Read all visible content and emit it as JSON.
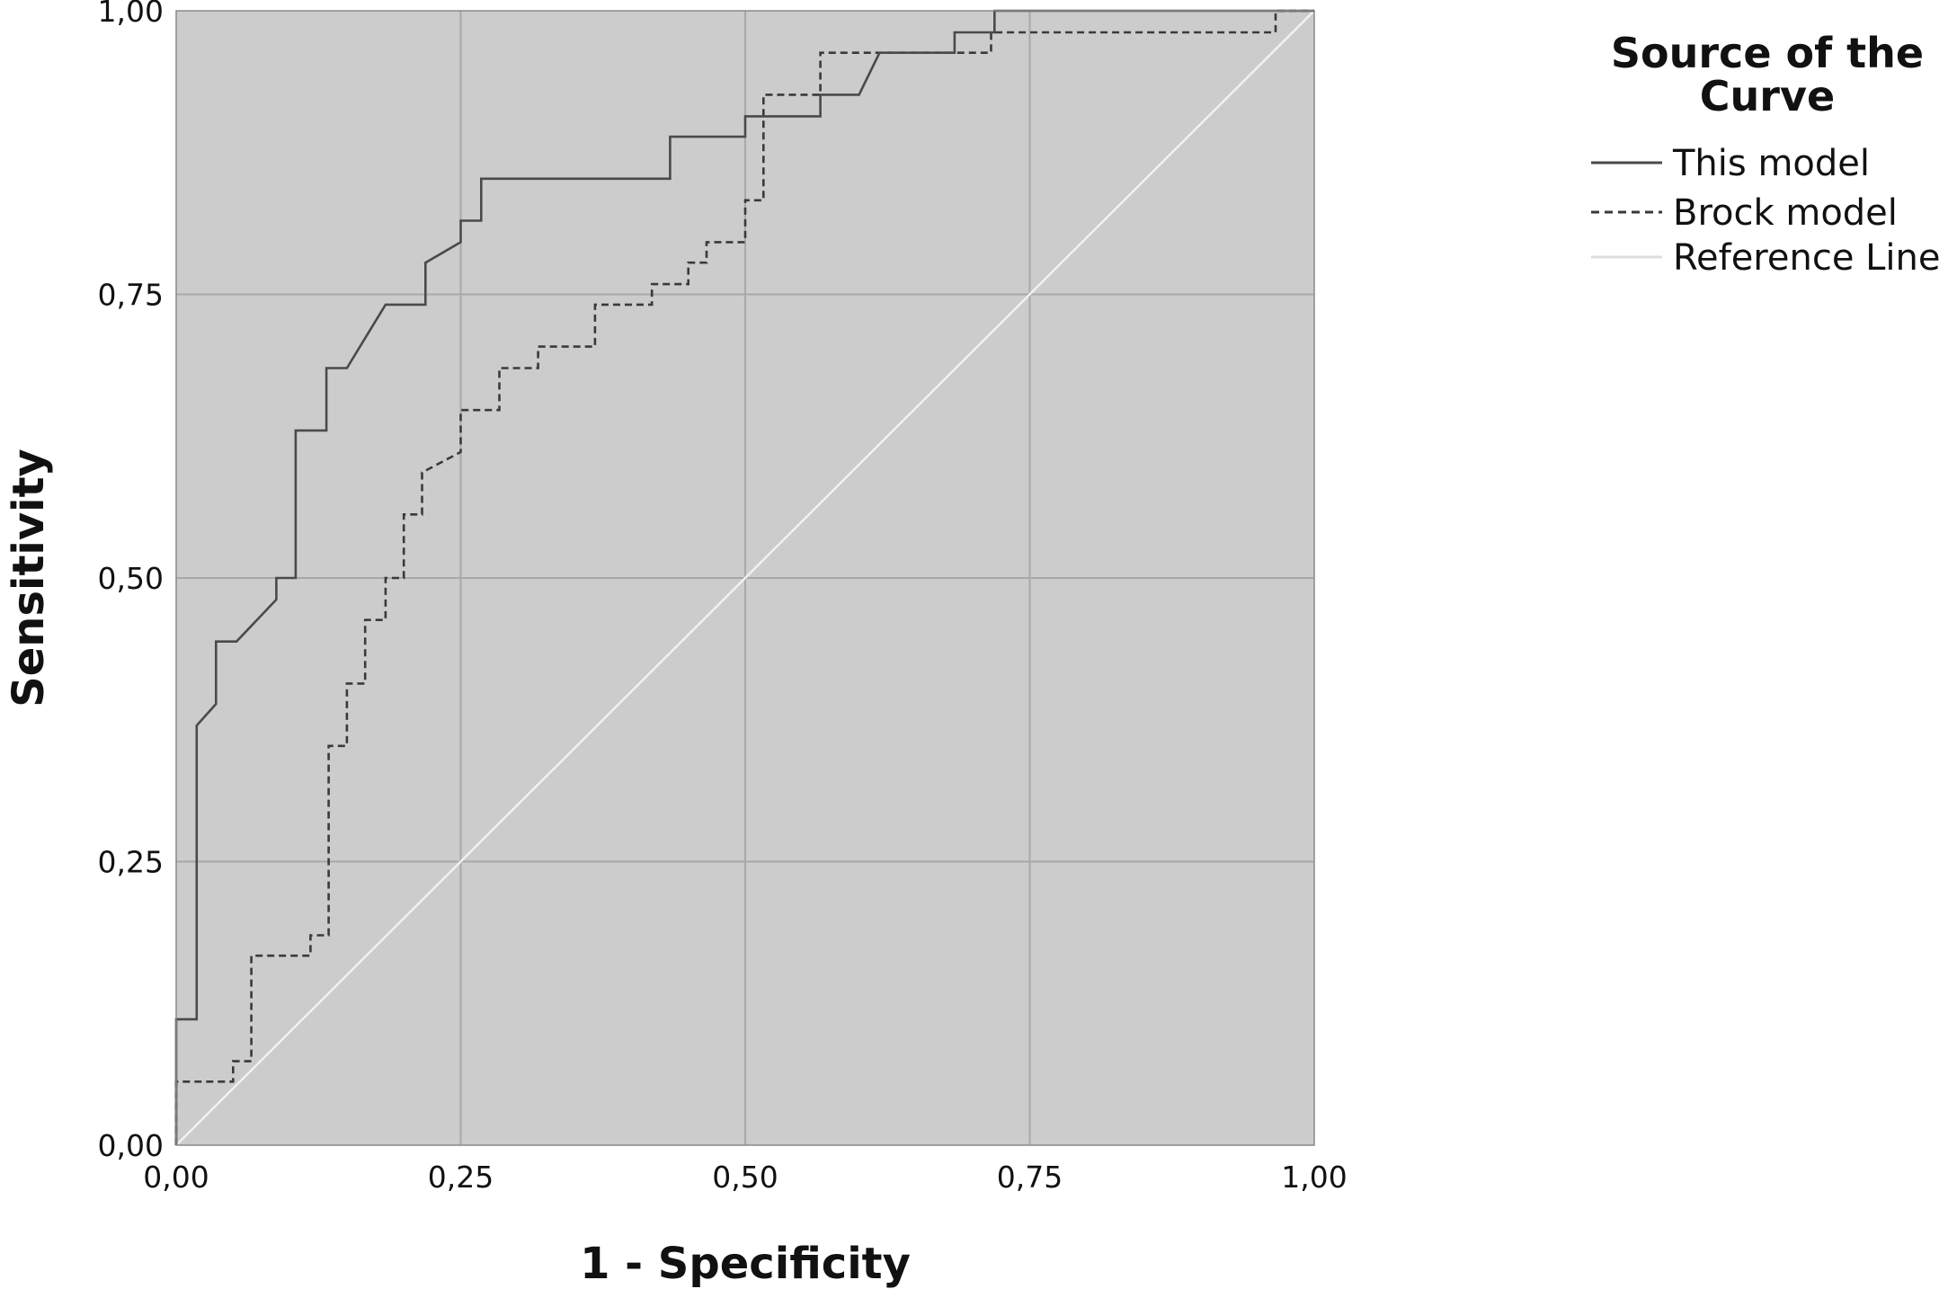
{
  "chart_data": {
    "type": "line",
    "xlabel": "1 - Specificity",
    "ylabel": "Sensitivity",
    "xlim": [
      0,
      1
    ],
    "ylim": [
      0,
      1
    ],
    "x_ticks": [
      "0,00",
      "0,25",
      "0,50",
      "0,75",
      "1,00"
    ],
    "y_ticks": [
      "0,00",
      "0,25",
      "0,50",
      "0,75",
      "1,00"
    ],
    "grid": true,
    "legend": {
      "title_lines": [
        "Source of the",
        "Curve"
      ],
      "placement": "right",
      "entries": [
        "This model",
        "Brock model",
        "Reference Line"
      ]
    },
    "colors": {
      "plot_background": "#cccccc",
      "grid": "#a8a8a8",
      "this_model": "#4a4a4a",
      "brock_model": "#3a3a3a",
      "reference_line": "#f2f2f2"
    },
    "series": [
      {
        "name": "This model",
        "style": "solid",
        "points": [
          [
            0.0,
            0.0
          ],
          [
            0.0,
            0.111
          ],
          [
            0.018,
            0.111
          ],
          [
            0.018,
            0.37
          ],
          [
            0.035,
            0.389
          ],
          [
            0.035,
            0.444
          ],
          [
            0.053,
            0.444
          ],
          [
            0.088,
            0.481
          ],
          [
            0.088,
            0.5
          ],
          [
            0.105,
            0.5
          ],
          [
            0.105,
            0.63
          ],
          [
            0.132,
            0.63
          ],
          [
            0.132,
            0.685
          ],
          [
            0.15,
            0.685
          ],
          [
            0.184,
            0.741
          ],
          [
            0.219,
            0.741
          ],
          [
            0.219,
            0.778
          ],
          [
            0.25,
            0.796
          ],
          [
            0.25,
            0.815
          ],
          [
            0.268,
            0.815
          ],
          [
            0.268,
            0.852
          ],
          [
            0.434,
            0.852
          ],
          [
            0.434,
            0.889
          ],
          [
            0.5,
            0.889
          ],
          [
            0.5,
            0.907
          ],
          [
            0.566,
            0.907
          ],
          [
            0.566,
            0.926
          ],
          [
            0.6,
            0.926
          ],
          [
            0.618,
            0.963
          ],
          [
            0.684,
            0.963
          ],
          [
            0.684,
            0.981
          ],
          [
            0.719,
            0.981
          ],
          [
            0.719,
            1.0
          ],
          [
            1.0,
            1.0
          ]
        ]
      },
      {
        "name": "Brock model",
        "style": "dashed",
        "points": [
          [
            0.0,
            0.0
          ],
          [
            0.0,
            0.056
          ],
          [
            0.05,
            0.056
          ],
          [
            0.05,
            0.074
          ],
          [
            0.066,
            0.074
          ],
          [
            0.066,
            0.167
          ],
          [
            0.118,
            0.167
          ],
          [
            0.118,
            0.185
          ],
          [
            0.134,
            0.185
          ],
          [
            0.134,
            0.352
          ],
          [
            0.15,
            0.352
          ],
          [
            0.15,
            0.407
          ],
          [
            0.166,
            0.407
          ],
          [
            0.166,
            0.463
          ],
          [
            0.184,
            0.463
          ],
          [
            0.184,
            0.5
          ],
          [
            0.2,
            0.5
          ],
          [
            0.2,
            0.556
          ],
          [
            0.216,
            0.556
          ],
          [
            0.216,
            0.593
          ],
          [
            0.25,
            0.611
          ],
          [
            0.25,
            0.648
          ],
          [
            0.284,
            0.648
          ],
          [
            0.284,
            0.685
          ],
          [
            0.318,
            0.685
          ],
          [
            0.318,
            0.704
          ],
          [
            0.368,
            0.704
          ],
          [
            0.368,
            0.741
          ],
          [
            0.418,
            0.741
          ],
          [
            0.418,
            0.759
          ],
          [
            0.45,
            0.759
          ],
          [
            0.45,
            0.778
          ],
          [
            0.466,
            0.778
          ],
          [
            0.466,
            0.796
          ],
          [
            0.5,
            0.796
          ],
          [
            0.5,
            0.833
          ],
          [
            0.516,
            0.833
          ],
          [
            0.516,
            0.926
          ],
          [
            0.566,
            0.926
          ],
          [
            0.566,
            0.963
          ],
          [
            0.716,
            0.963
          ],
          [
            0.716,
            0.981
          ],
          [
            0.966,
            0.981
          ],
          [
            0.966,
            1.0
          ],
          [
            1.0,
            1.0
          ]
        ]
      },
      {
        "name": "Reference Line",
        "style": "solid",
        "points": [
          [
            0,
            0
          ],
          [
            1,
            1
          ]
        ]
      }
    ]
  }
}
